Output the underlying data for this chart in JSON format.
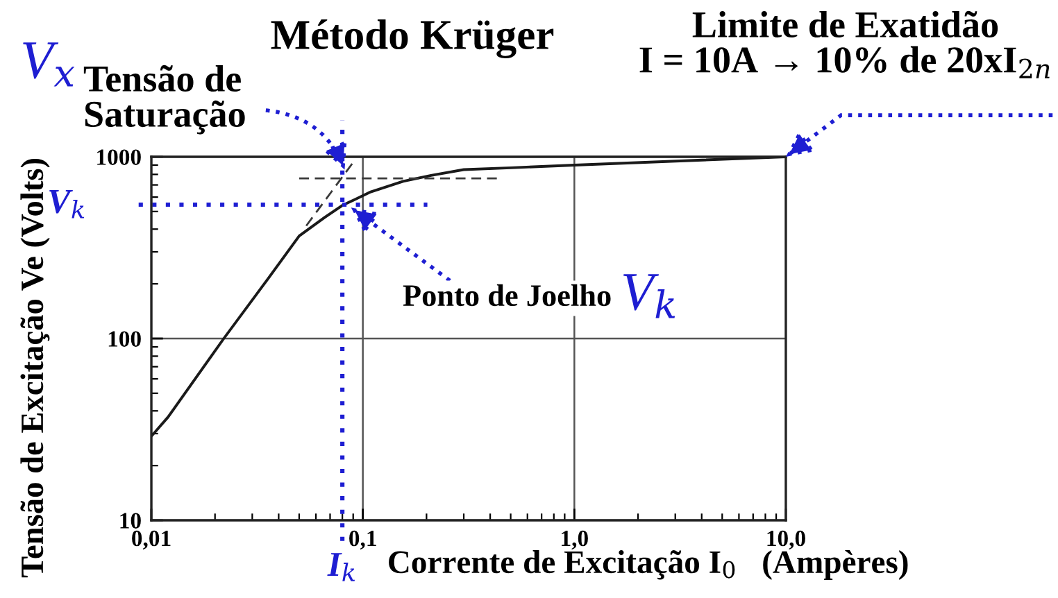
{
  "chart_data": {
    "type": "line",
    "title": "Método Krüger",
    "xlabel": "Corrente de Excitação I$_{0}$   (Ampères)",
    "ylabel": "Tensão de Excitação Ve (Volts)",
    "log": "xy",
    "xlim": [
      0.01,
      10
    ],
    "ylim": [
      10,
      1000
    ],
    "xticks": [
      {
        "value": 0.01,
        "label": "0,01"
      },
      {
        "value": 0.1,
        "label": "0,1"
      },
      {
        "value": 1,
        "label": "1,0"
      },
      {
        "value": 10,
        "label": "10,0"
      }
    ],
    "yticks": [
      10,
      100,
      1000
    ],
    "grid": true,
    "series": [
      {
        "color": "#1a1a1a",
        "x": [
          0.01,
          0.012,
          0.022,
          0.036,
          0.05,
          0.066,
          0.08,
          0.109,
          0.155,
          0.21,
          0.3,
          0.5,
          1,
          10
        ],
        "values": [
          29,
          37,
          100,
          217,
          367,
          464,
          540,
          641,
          733,
          790,
          850,
          870,
          900,
          1000
        ]
      },
      {
        "color": "#3a3a3a",
        "line_style": "dashed",
        "x": [
          0.05,
          0.43
        ],
        "values": [
          760,
          760
        ]
      },
      {
        "color": "#3a3a3a",
        "line_style": "dashed",
        "x": [
          0.054,
          0.089
        ],
        "values": [
          417,
          916
        ]
      }
    ],
    "ref_lines": [
      {
        "axis": "x",
        "value": 0.08,
        "label": "I$_{k}$",
        "color": "#1e1ed2",
        "line_style": "dotted"
      },
      {
        "axis": "y",
        "value": 545,
        "label": "V$_{k}$",
        "color": "#1e1ed2",
        "line_style": "dotted"
      }
    ],
    "annotations": [
      "V$_{x}$",
      {
        "text": "Tensão de\nSaturação",
        "x": 0.082,
        "y": 850
      },
      {
        "text": "Ponto de Joelho",
        "x": 0.088,
        "y": 525
      },
      "V$_{k}$",
      {
        "text": "Limite de Exatidão\nI = 10A → 10% de 20xI$_{2n}$",
        "x": 10,
        "y": 1000
      }
    ]
  }
}
